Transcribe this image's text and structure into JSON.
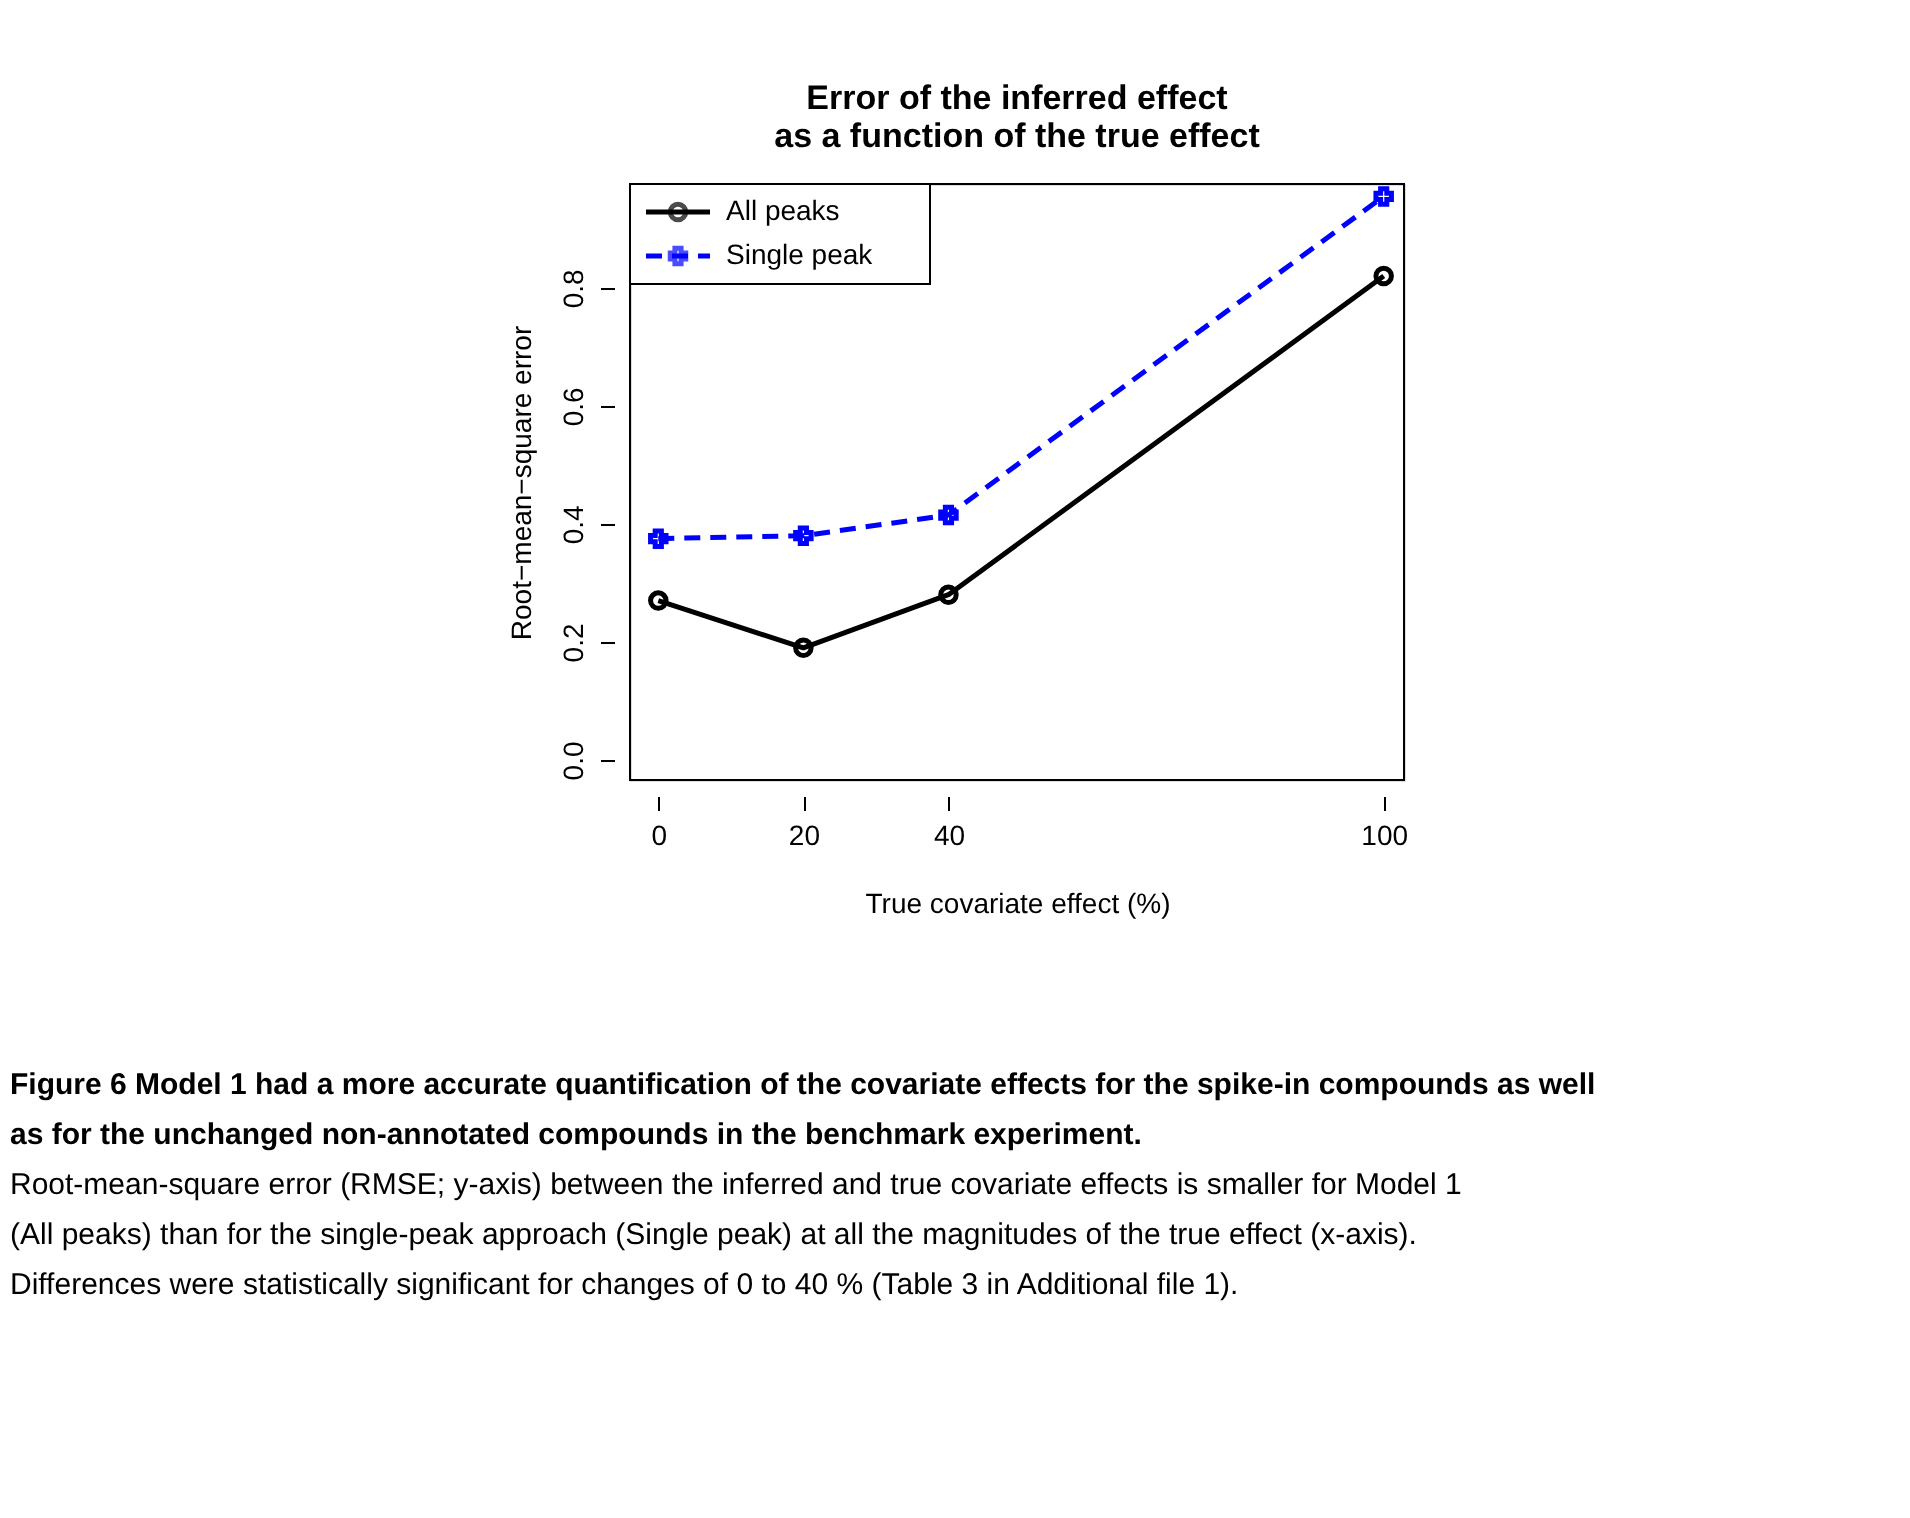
{
  "chart_data": {
    "type": "line",
    "title": "Error of the inferred effect\nas a function of the true effect",
    "xlabel": "True covariate effect (%)",
    "ylabel": "Root−mean−square error",
    "x": [
      0,
      20,
      40,
      100
    ],
    "series": [
      {
        "name": "All peaks",
        "color": "#000000",
        "values": [
          0.27,
          0.19,
          0.28,
          0.82
        ],
        "marker": "circle",
        "line_style": "solid"
      },
      {
        "name": "Single peak",
        "color": "#0000ff",
        "values": [
          0.375,
          0.38,
          0.415,
          0.955
        ],
        "marker": "cross",
        "line_style": "dashed"
      }
    ],
    "xlim": [
      -3.9,
      102.8
    ],
    "ylim": [
      -0.034,
      0.976
    ],
    "xticks": [
      0,
      20,
      40,
      100
    ],
    "yticks": [
      {
        "value": 0,
        "label": "0.0"
      },
      0.2,
      0.4,
      0.6,
      0.8
    ],
    "grid": false,
    "legend": "top left",
    "annotations": [
      "Figure 6 Model 1 had a more accurate quantification of the covariate effects for the spike-in compounds as well as for the unchanged non-annotated compounds in the benchmark experiment.",
      "Root-mean-square error (RMSE; y-axis) between the inferred and true covariate effects is smaller for Model 1 (All peaks) than for the single-peak approach (Single peak) at all the magnitudes of the true effect (x-axis). Differences were statistically significant for changes of 0 to 40 % (Table 3 in Additional file 1)."
    ]
  }
}
